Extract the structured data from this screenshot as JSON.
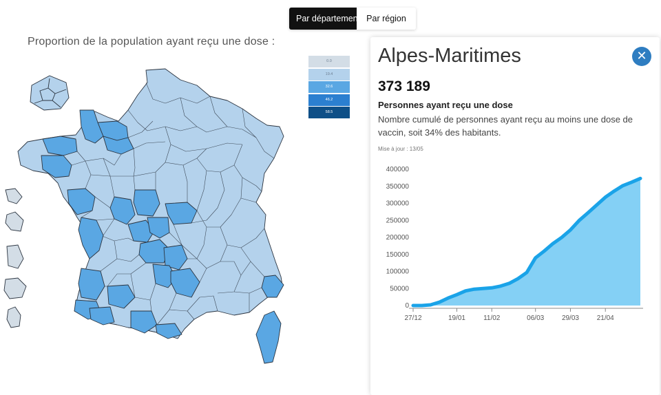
{
  "tabs": [
    {
      "label": "Par département",
      "active": true
    },
    {
      "label": "Par région",
      "active": false
    }
  ],
  "map": {
    "title": "Proportion de la population ayant reçu une dose :",
    "legend": [
      {
        "label": "0.0",
        "color": "#d3dde6"
      },
      {
        "label": "19.4",
        "color": "#b4d2ec"
      },
      {
        "label": "32.6",
        "color": "#5aa7e3"
      },
      {
        "label": "46.2",
        "color": "#2b7fd0"
      },
      {
        "label": "58.5",
        "color": "#0e4f87"
      }
    ],
    "colors": {
      "light": "#b4d2ec",
      "medium": "#5aa7e3",
      "outremer": "#d3dde6",
      "border": "#2b3440"
    }
  },
  "panel": {
    "title": "Alpes-Maritimes",
    "close_icon": "close-icon",
    "value": "373 189",
    "metric_label": "Personnes ayant reçu une dose",
    "description": "Nombre cumulé de personnes ayant reçu au moins une dose de vaccin, soit 34% des habitants.",
    "updated": "Mise à jour : 13/05"
  },
  "chart_data": {
    "type": "area",
    "x": [
      "27/12",
      "01/01",
      "05/01",
      "10/01",
      "15/01",
      "19/01",
      "25/01",
      "01/02",
      "06/02",
      "11/02",
      "16/02",
      "21/02",
      "26/02",
      "01/03",
      "06/03",
      "11/03",
      "17/03",
      "23/03",
      "29/03",
      "04/04",
      "09/04",
      "15/04",
      "21/04",
      "27/04",
      "03/05",
      "08/05",
      "13/05"
    ],
    "values": [
      0,
      0,
      2000,
      10000,
      22000,
      32000,
      43000,
      48000,
      50000,
      52000,
      57000,
      65000,
      79000,
      97000,
      140000,
      160000,
      182000,
      200000,
      222000,
      250000,
      272000,
      295000,
      318000,
      336000,
      352000,
      362000,
      373189
    ],
    "ylim": [
      0,
      400000
    ],
    "yticks": [
      0,
      50000,
      100000,
      150000,
      200000,
      250000,
      300000,
      350000,
      400000
    ],
    "xticks": [
      "27/12",
      "19/01",
      "11/02",
      "06/03",
      "29/03",
      "21/04"
    ],
    "line_color": "#1aa3e8",
    "fill_color": "#84d0f5"
  }
}
